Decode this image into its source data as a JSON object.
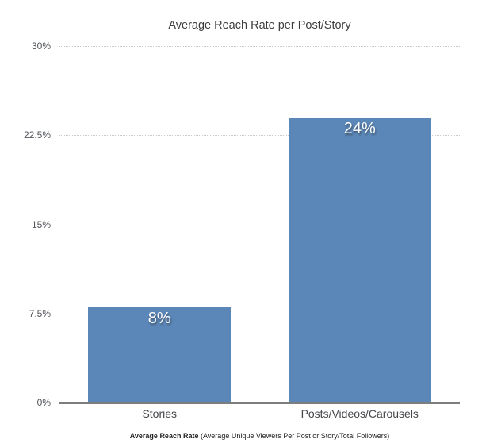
{
  "chart_data": {
    "type": "bar",
    "title": "Average Reach Rate per Post/Story",
    "categories": [
      "Stories",
      "Posts/Videos/Carousels"
    ],
    "values": [
      8,
      24
    ],
    "value_labels": [
      "8%",
      "24%"
    ],
    "xlabel": "",
    "ylabel": "",
    "ylim": [
      0,
      30
    ],
    "yticks": [
      0,
      7.5,
      15,
      22.5,
      30
    ],
    "ytick_labels": [
      "0%",
      "7.5%",
      "15%",
      "22.5%",
      "30%"
    ],
    "grid": "horizontal-dotted",
    "legend": "none",
    "bar_color": "#5b87b8"
  },
  "footer": {
    "bold": "Average Reach Rate",
    "rest": " (Average Unique Viewers Per Post or Story/Total Followers)"
  },
  "colors": {
    "bar": "#5b87b8",
    "grid": "#c9c9c9",
    "axis_line": "#7d7d7d",
    "title_text": "#3d3d3d",
    "tick_text": "#515459",
    "category_text": "#45474b",
    "value_text": "#ffffff",
    "footer_text": "#1f1f1f",
    "background": "#ffffff"
  }
}
